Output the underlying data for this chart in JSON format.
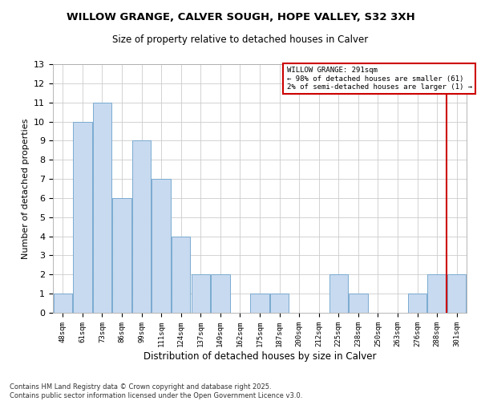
{
  "title_line1": "WILLOW GRANGE, CALVER SOUGH, HOPE VALLEY, S32 3XH",
  "title_line2": "Size of property relative to detached houses in Calver",
  "xlabel": "Distribution of detached houses by size in Calver",
  "ylabel": "Number of detached properties",
  "categories": [
    "48sqm",
    "61sqm",
    "73sqm",
    "86sqm",
    "99sqm",
    "111sqm",
    "124sqm",
    "137sqm",
    "149sqm",
    "162sqm",
    "175sqm",
    "187sqm",
    "200sqm",
    "212sqm",
    "225sqm",
    "238sqm",
    "250sqm",
    "263sqm",
    "276sqm",
    "288sqm",
    "301sqm"
  ],
  "values": [
    1,
    10,
    11,
    6,
    9,
    7,
    4,
    2,
    2,
    0,
    1,
    1,
    0,
    0,
    2,
    1,
    0,
    0,
    1,
    2,
    2
  ],
  "bar_color": "#c8daf0",
  "bar_edgecolor": "#7aaad0",
  "marker_color": "#cc0000",
  "annotation_title": "WILLOW GRANGE: 291sqm",
  "annotation_line2": "← 98% of detached houses are smaller (61)",
  "annotation_line3": "2% of semi-detached houses are larger (1) →",
  "annotation_box_color": "#cc0000",
  "ylim": [
    0,
    13
  ],
  "yticks": [
    0,
    1,
    2,
    3,
    4,
    5,
    6,
    7,
    8,
    9,
    10,
    11,
    12,
    13
  ],
  "footer_line1": "Contains HM Land Registry data © Crown copyright and database right 2025.",
  "footer_line2": "Contains public sector information licensed under the Open Government Licence v3.0.",
  "bg_color": "#ffffff",
  "grid_color": "#cccccc"
}
